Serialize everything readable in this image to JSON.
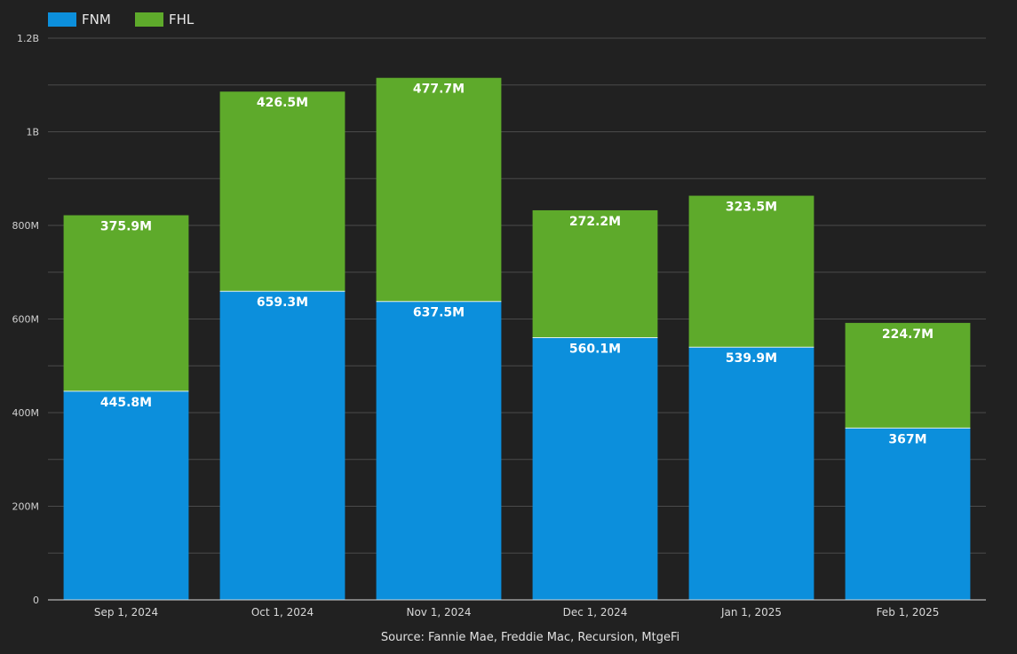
{
  "chart_data": {
    "type": "bar",
    "stacked": true,
    "categories": [
      "Sep 1, 2024",
      "Oct 1, 2024",
      "Nov 1, 2024",
      "Dec 1, 2024",
      "Jan 1, 2025",
      "Feb 1, 2025"
    ],
    "series": [
      {
        "name": "FNM",
        "color": "#0c8fdc",
        "values": [
          445.8,
          659.3,
          637.5,
          560.1,
          539.9,
          367
        ],
        "labels": [
          "445.8M",
          "659.3M",
          "637.5M",
          "560.1M",
          "539.9M",
          "367M"
        ]
      },
      {
        "name": "FHL",
        "color": "#5eaa2b",
        "values": [
          375.9,
          426.5,
          477.7,
          272.2,
          323.5,
          224.7
        ],
        "labels": [
          "375.9M",
          "426.5M",
          "477.7M",
          "272.2M",
          "323.5M",
          "224.7M"
        ]
      }
    ],
    "units": "millions",
    "ylim": [
      0,
      1200
    ],
    "yticks": [
      0,
      200,
      400,
      600,
      800,
      1000,
      1200
    ],
    "ytick_labels": [
      "0",
      "200M",
      "400M",
      "600M",
      "800M",
      "1B",
      "1.2B"
    ],
    "title": "",
    "xlabel": "",
    "ylabel": "",
    "grid": true,
    "legend": "top-left",
    "source": "Source: Fannie Mae, Freddie Mac, Recursion, MtgeFi"
  }
}
